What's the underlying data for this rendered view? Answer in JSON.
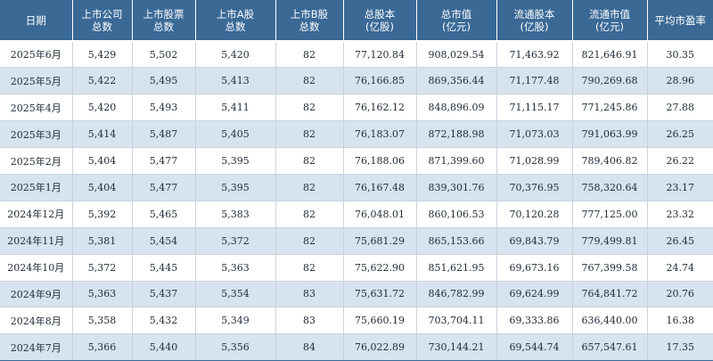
{
  "table": {
    "headers": [
      {
        "line1": "日期",
        "line2": ""
      },
      {
        "line1": "上市公司",
        "line2": "总数"
      },
      {
        "line1": "上市股票",
        "line2": "总数"
      },
      {
        "line1": "上市A股",
        "line2": "总数"
      },
      {
        "line1": "上市B股",
        "line2": "总数"
      },
      {
        "line1": "总股本",
        "line2": "(亿股)"
      },
      {
        "line1": "总市值",
        "line2": "(亿元)"
      },
      {
        "line1": "流通股本",
        "line2": "(亿股)"
      },
      {
        "line1": "流通市值",
        "line2": "(亿元)"
      },
      {
        "line1": "平均市盈率",
        "line2": ""
      }
    ],
    "rows": [
      [
        "2025年6月",
        "5,429",
        "5,502",
        "5,420",
        "82",
        "77,120.84",
        "908,029.54",
        "71,463.92",
        "821,646.91",
        "30.35"
      ],
      [
        "2025年5月",
        "5,422",
        "5,495",
        "5,413",
        "82",
        "76,166.85",
        "869,356.44",
        "71,177.48",
        "790,269.68",
        "28.96"
      ],
      [
        "2025年4月",
        "5,420",
        "5,493",
        "5,411",
        "82",
        "76,162.12",
        "848,896.09",
        "71,115.17",
        "771,245.86",
        "27.88"
      ],
      [
        "2025年3月",
        "5,414",
        "5,487",
        "5,405",
        "82",
        "76,183.07",
        "872,188.98",
        "71,073.03",
        "791,063.99",
        "26.25"
      ],
      [
        "2025年2月",
        "5,404",
        "5,477",
        "5,395",
        "82",
        "76,188.06",
        "871,399.60",
        "71,028.99",
        "789,406.82",
        "26.22"
      ],
      [
        "2025年1月",
        "5,404",
        "5,477",
        "5,395",
        "82",
        "76,167.48",
        "839,301.76",
        "70,376.95",
        "758,320.64",
        "23.17"
      ],
      [
        "2024年12月",
        "5,392",
        "5,465",
        "5,383",
        "82",
        "76,048.01",
        "860,106.53",
        "70,120.28",
        "777,125.00",
        "23.32"
      ],
      [
        "2024年11月",
        "5,381",
        "5,454",
        "5,372",
        "82",
        "75,681.29",
        "865,153.66",
        "69,843.79",
        "779,499.81",
        "26.45"
      ],
      [
        "2024年10月",
        "5,372",
        "5,445",
        "5,363",
        "82",
        "75,622.90",
        "851,621.95",
        "69,673.16",
        "767,399.58",
        "24.74"
      ],
      [
        "2024年9月",
        "5,363",
        "5,437",
        "5,354",
        "83",
        "75,631.72",
        "846,782.99",
        "69,624.99",
        "764,841.72",
        "20.76"
      ],
      [
        "2024年8月",
        "5,358",
        "5,432",
        "5,349",
        "83",
        "75,660.19",
        "703,704.11",
        "69,333.86",
        "636,440.00",
        "16.38"
      ],
      [
        "2024年7月",
        "5,366",
        "5,440",
        "5,356",
        "84",
        "76,022.89",
        "730,144.21",
        "69,544.74",
        "657,547.61",
        "17.35"
      ]
    ],
    "colors": {
      "header_bg": "#3a6996",
      "header_text": "#ffffff",
      "stripe_bg": "#d7e3ee"
    }
  }
}
